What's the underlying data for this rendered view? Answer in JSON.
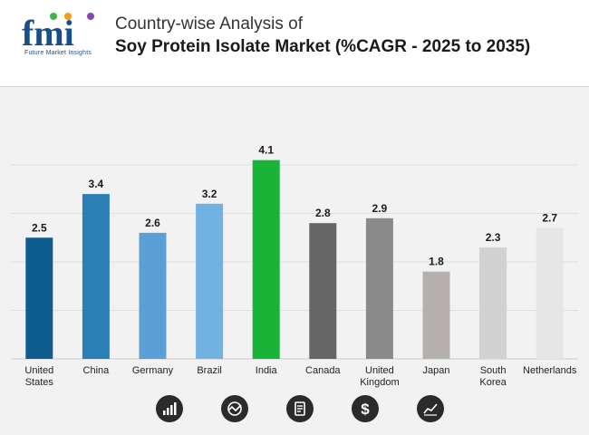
{
  "header": {
    "logo_text": "fmi",
    "logo_tagline": "Future Market Insights",
    "title_line1": "Country-wise Analysis of",
    "title_line2": "Soy Protein Isolate Market (%CAGR - 2025 to 2035)"
  },
  "chart_data": {
    "type": "bar",
    "title": "Country-wise Analysis of Soy Protein Isolate Market (%CAGR - 2025 to 2035)",
    "xlabel": "",
    "ylabel": "",
    "ylim": [
      0,
      5
    ],
    "grid": true,
    "categories": [
      "United States",
      "China",
      "Germany",
      "Brazil",
      "India",
      "Canada",
      "United Kingdom",
      "Japan",
      "South Korea",
      "Netherlands"
    ],
    "category_lines": [
      [
        "United",
        "States"
      ],
      [
        "China"
      ],
      [
        "Germany"
      ],
      [
        "Brazil"
      ],
      [
        "India"
      ],
      [
        "Canada"
      ],
      [
        "United",
        "Kingdom"
      ],
      [
        "Japan"
      ],
      [
        "South",
        "Korea"
      ],
      [
        "Netherlands"
      ]
    ],
    "values": [
      2.5,
      3.4,
      2.6,
      3.2,
      4.1,
      2.8,
      2.9,
      1.8,
      2.3,
      2.7
    ],
    "value_labels": [
      "2.5",
      "3.4",
      "2.6",
      "3.2",
      "4.1",
      "2.8",
      "2.9",
      "1.8",
      "2.3",
      "2.7"
    ],
    "colors": [
      "#0f5c8e",
      "#2a7fb4",
      "#5aa0d6",
      "#72b2e2",
      "#19b437",
      "#666666",
      "#8a8a8a",
      "#b5b0ad",
      "#d2d2d2",
      "#e6e6e6"
    ]
  },
  "footer_icons": [
    "bar-growth-icon",
    "globe-chart-icon",
    "document-icon",
    "dollar-icon",
    "trend-line-icon"
  ]
}
